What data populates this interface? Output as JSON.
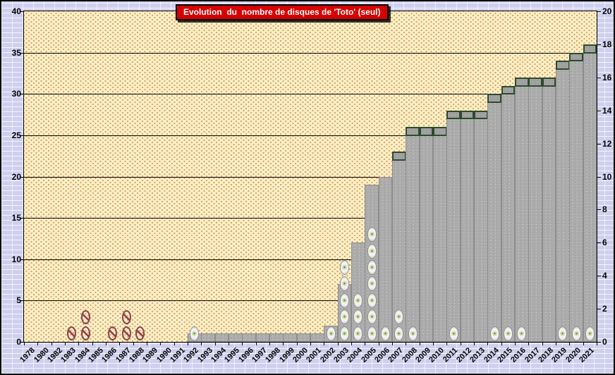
{
  "title": {
    "text": "Evolution  du  nombre de disques de 'Toto' (seul)"
  },
  "chart_data": {
    "type": "bar",
    "title": "Evolution  du  nombre de disques de 'Toto' (seul)",
    "grid": true,
    "legend": false,
    "categories": [
      "1978",
      "1980",
      "1982",
      "1983",
      "1984",
      "1985",
      "1986",
      "1987",
      "1988",
      "1989",
      "1990",
      "1991",
      "1992",
      "1993",
      "1994",
      "1995",
      "1996",
      "1997",
      "1998",
      "1999",
      "2000",
      "2001",
      "2002",
      "2003",
      "2004",
      "2005",
      "2006",
      "2007",
      "2008",
      "2009",
      "2010",
      "2011",
      "2012",
      "2013",
      "2014",
      "2015",
      "2016",
      "2017",
      "2018",
      "2019",
      "2020",
      "2021"
    ],
    "left_axis": {
      "min": 0,
      "max": 40,
      "step": 5,
      "ticks": [
        0,
        5,
        10,
        15,
        20,
        25,
        30,
        35,
        40
      ]
    },
    "right_axis": {
      "min": 0,
      "max": 20,
      "step": 2,
      "ticks": [
        0,
        2,
        4,
        6,
        8,
        10,
        12,
        14,
        16,
        18,
        20
      ]
    },
    "series": [
      {
        "name": "total-disques-cumul-bar",
        "type": "bar",
        "axis": "left",
        "values": [
          0,
          0,
          0,
          0,
          0,
          0,
          0,
          0,
          0,
          0,
          0,
          0,
          1,
          1,
          1,
          1,
          1,
          1,
          1,
          1,
          1,
          1,
          2,
          7,
          12,
          19,
          20,
          23,
          26,
          26,
          26,
          28,
          28,
          28,
          30,
          31,
          32,
          32,
          32,
          34,
          35,
          36
        ]
      },
      {
        "name": "dernier-disque-segment-borde",
        "type": "bar-top-segment",
        "axis": "left",
        "unit_height": 1,
        "values": [
          0,
          0,
          0,
          0,
          0,
          0,
          0,
          0,
          0,
          0,
          0,
          0,
          0,
          0,
          0,
          0,
          0,
          0,
          0,
          0,
          0,
          0,
          0,
          0,
          0,
          0,
          0,
          1,
          1,
          1,
          1,
          1,
          1,
          1,
          1,
          1,
          1,
          1,
          1,
          1,
          1,
          1
        ]
      },
      {
        "name": "disques-cd-marqueurs",
        "type": "scatter-stack",
        "axis": "right",
        "base_level": 0.5,
        "level_step": 1,
        "counts": [
          0,
          0,
          0,
          0,
          0,
          0,
          0,
          0,
          0,
          0,
          0,
          0,
          1,
          0,
          0,
          0,
          0,
          0,
          0,
          0,
          0,
          0,
          1,
          5,
          3,
          7,
          1,
          2,
          1,
          0,
          0,
          1,
          0,
          0,
          1,
          1,
          1,
          0,
          0,
          1,
          1,
          1
        ]
      },
      {
        "name": "disques-barres-marqueurs",
        "type": "scatter-stack",
        "axis": "right",
        "base_level": 0.5,
        "level_step": 1,
        "counts": [
          0,
          0,
          0,
          1,
          2,
          0,
          1,
          2,
          1,
          0,
          0,
          0,
          0,
          0,
          0,
          0,
          0,
          0,
          0,
          0,
          0,
          0,
          0,
          0,
          0,
          0,
          0,
          0,
          0,
          0,
          0,
          0,
          0,
          0,
          0,
          0,
          0,
          0,
          0,
          0,
          0,
          0
        ]
      }
    ]
  },
  "colors": {
    "outer_background": "#CFCFEE",
    "brick_mortar": "#F4F4FC",
    "plot_background": "#F9F0C5",
    "plot_dots": "#DC8A52",
    "bar_fill": "#ADADAD",
    "bar_border": "#8C8C8C",
    "segment_fill": "#A2A2A2",
    "segment_border": "#2B4A2B",
    "title_background": "#D60000",
    "title_text": "#FFFFFF",
    "grid_and_axes": "#000000",
    "slashed_marker": "#8E4050",
    "cd_marker_center": "#CFE0A8"
  }
}
